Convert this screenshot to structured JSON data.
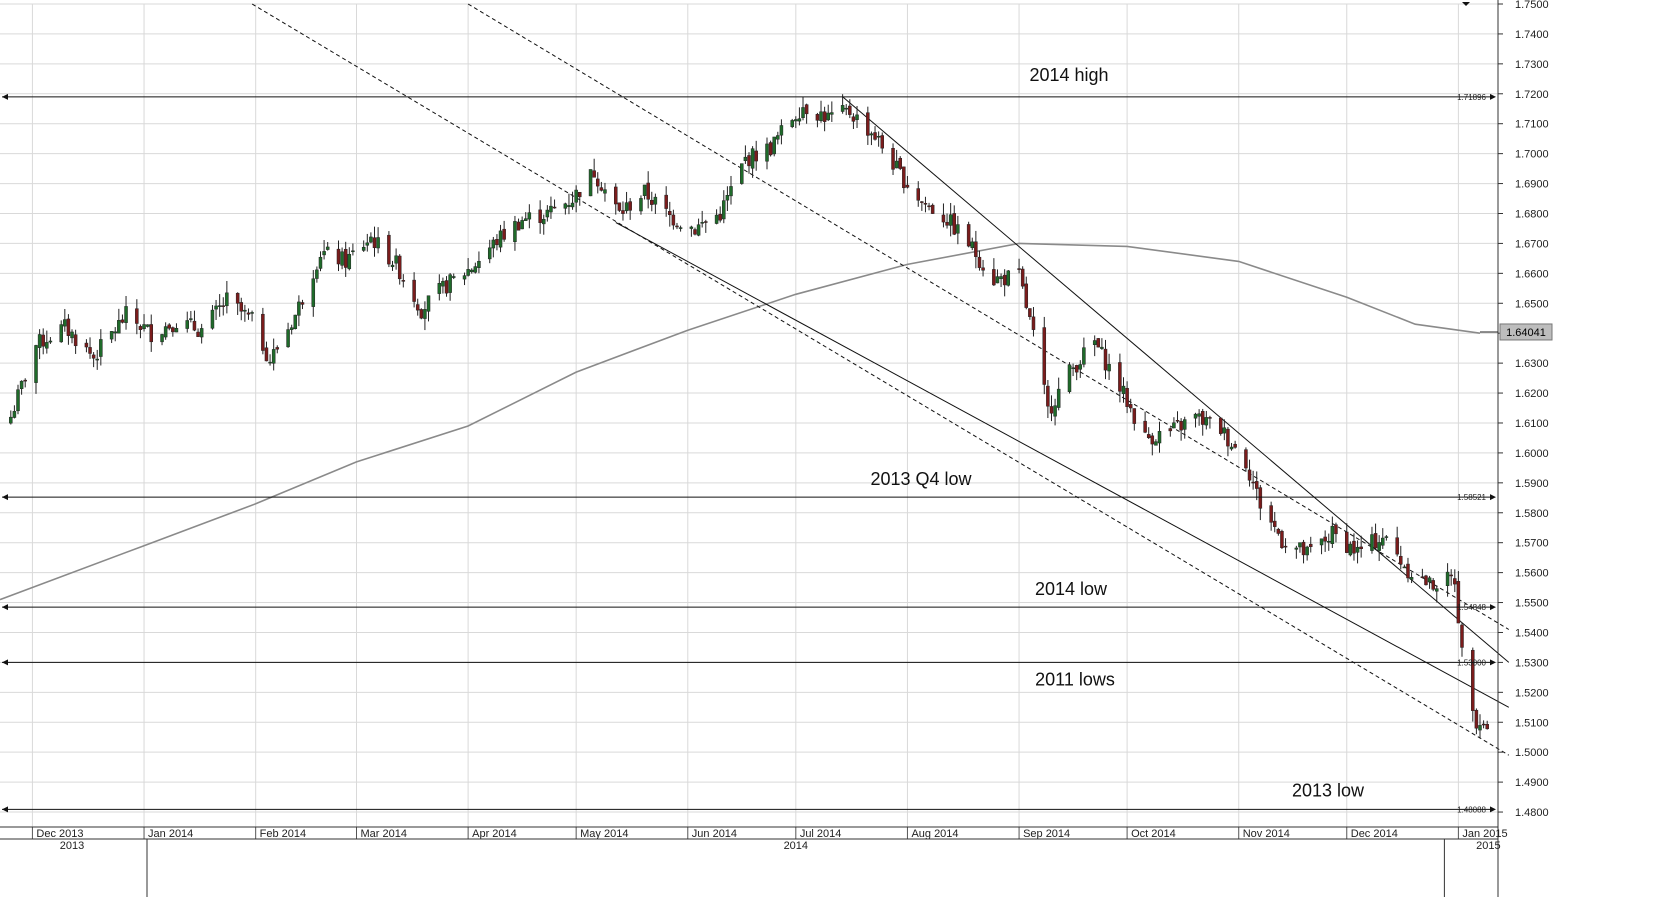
{
  "chart_data": {
    "type": "candlestick",
    "instrument": "",
    "timeframe": "daily",
    "y_axis": {
      "min": 1.475,
      "max": 1.75,
      "ticks": [
        "1.4800",
        "1.4900",
        "1.5000",
        "1.5100",
        "1.5200",
        "1.5300",
        "1.5400",
        "1.5500",
        "1.5600",
        "1.5700",
        "1.5800",
        "1.5900",
        "1.6000",
        "1.6100",
        "1.6200",
        "1.6300",
        "1.6400",
        "1.6500",
        "1.6600",
        "1.6700",
        "1.6800",
        "1.6900",
        "1.7000",
        "1.7100",
        "1.7200",
        "1.7300",
        "1.7400",
        "1.7500"
      ]
    },
    "x_axis": {
      "start": "2013-11-22",
      "end": "2015-01-12",
      "months": [
        {
          "label": "Dec 2013",
          "date": "2013-12-01"
        },
        {
          "label": "Jan 2014",
          "date": "2014-01-01"
        },
        {
          "label": "Feb 2014",
          "date": "2014-02-01"
        },
        {
          "label": "Mar 2014",
          "date": "2014-03-01"
        },
        {
          "label": "Apr 2014",
          "date": "2014-04-01"
        },
        {
          "label": "May 2014",
          "date": "2014-05-01"
        },
        {
          "label": "Jun 2014",
          "date": "2014-06-01"
        },
        {
          "label": "Jul 2014",
          "date": "2014-07-01"
        },
        {
          "label": "Aug 2014",
          "date": "2014-08-01"
        },
        {
          "label": "Sep 2014",
          "date": "2014-09-01"
        },
        {
          "label": "Oct 2014",
          "date": "2014-10-01"
        },
        {
          "label": "Nov 2014",
          "date": "2014-11-01"
        },
        {
          "label": "Dec 2014",
          "date": "2014-12-01"
        },
        {
          "label": "Jan 2015",
          "date": "2015-01-01"
        }
      ],
      "years": [
        {
          "label": "2013",
          "date": "2013-11-22"
        },
        {
          "label": "2014",
          "date": "2014-07-01"
        },
        {
          "label": "2015",
          "date": "2015-01-01"
        }
      ]
    },
    "close_path": [
      [
        "2013-11-25",
        1.612
      ],
      [
        "2013-12-02",
        1.636
      ],
      [
        "2013-12-10",
        1.642
      ],
      [
        "2013-12-18",
        1.632
      ],
      [
        "2013-12-27",
        1.646
      ],
      [
        "2014-01-03",
        1.64
      ],
      [
        "2014-01-10",
        1.644
      ],
      [
        "2014-01-17",
        1.641
      ],
      [
        "2014-01-24",
        1.651
      ],
      [
        "2014-01-31",
        1.644
      ],
      [
        "2014-02-05",
        1.631
      ],
      [
        "2014-02-12",
        1.646
      ],
      [
        "2014-02-19",
        1.667
      ],
      [
        "2014-02-26",
        1.664
      ],
      [
        "2014-03-05",
        1.672
      ],
      [
        "2014-03-12",
        1.663
      ],
      [
        "2014-03-19",
        1.648
      ],
      [
        "2014-03-26",
        1.656
      ],
      [
        "2014-04-02",
        1.662
      ],
      [
        "2014-04-09",
        1.671
      ],
      [
        "2014-04-16",
        1.678
      ],
      [
        "2014-04-23",
        1.68
      ],
      [
        "2014-04-30",
        1.685
      ],
      [
        "2014-05-06",
        1.694
      ],
      [
        "2014-05-13",
        1.68
      ],
      [
        "2014-05-20",
        1.687
      ],
      [
        "2014-05-27",
        1.679
      ],
      [
        "2014-06-03",
        1.675
      ],
      [
        "2014-06-10",
        1.68
      ],
      [
        "2014-06-17",
        1.698
      ],
      [
        "2014-06-24",
        1.702
      ],
      [
        "2014-06-30",
        1.712
      ],
      [
        "2014-07-03",
        1.716
      ],
      [
        "2014-07-10",
        1.712
      ],
      [
        "2014-07-16",
        1.714
      ],
      [
        "2014-07-23",
        1.706
      ],
      [
        "2014-07-30",
        1.693
      ],
      [
        "2014-08-05",
        1.684
      ],
      [
        "2014-08-12",
        1.678
      ],
      [
        "2014-08-18",
        1.67
      ],
      [
        "2014-08-25",
        1.658
      ],
      [
        "2014-09-01",
        1.659
      ],
      [
        "2014-09-05",
        1.639
      ],
      [
        "2014-09-09",
        1.614
      ],
      [
        "2014-09-15",
        1.627
      ],
      [
        "2014-09-22",
        1.637
      ],
      [
        "2014-09-29",
        1.622
      ],
      [
        "2014-10-06",
        1.605
      ],
      [
        "2014-10-13",
        1.607
      ],
      [
        "2014-10-20",
        1.612
      ],
      [
        "2014-10-27",
        1.608
      ],
      [
        "2014-11-03",
        1.597
      ],
      [
        "2014-11-07",
        1.583
      ],
      [
        "2014-11-13",
        1.571
      ],
      [
        "2014-11-20",
        1.566
      ],
      [
        "2014-11-27",
        1.573
      ],
      [
        "2014-12-04",
        1.567
      ],
      [
        "2014-12-11",
        1.572
      ],
      [
        "2014-12-18",
        1.561
      ],
      [
        "2014-12-24",
        1.556
      ],
      [
        "2014-12-31",
        1.558
      ],
      [
        "2015-01-02",
        1.533
      ],
      [
        "2015-01-06",
        1.511
      ],
      [
        "2015-01-09",
        1.509
      ]
    ],
    "overlays": [
      {
        "kind": "moving_average",
        "color": "#8a8a8a",
        "points": [
          [
            "2013-11-22",
            1.551
          ],
          [
            "2014-01-01",
            1.569
          ],
          [
            "2014-02-01",
            1.583
          ],
          [
            "2014-03-01",
            1.597
          ],
          [
            "2014-04-01",
            1.609
          ],
          [
            "2014-05-01",
            1.627
          ],
          [
            "2014-06-01",
            1.641
          ],
          [
            "2014-07-01",
            1.653
          ],
          [
            "2014-08-01",
            1.663
          ],
          [
            "2014-09-01",
            1.67
          ],
          [
            "2014-10-01",
            1.669
          ],
          [
            "2014-11-01",
            1.664
          ],
          [
            "2014-12-01",
            1.652
          ],
          [
            "2014-12-20",
            1.643
          ],
          [
            "2015-01-07",
            1.64
          ]
        ]
      },
      {
        "kind": "trendline",
        "style": "solid",
        "points": [
          [
            "2014-07-14",
            1.719
          ],
          [
            "2015-01-15",
            1.53
          ]
        ]
      },
      {
        "kind": "trendline",
        "style": "solid",
        "points": [
          [
            "2014-05-12",
            1.677
          ],
          [
            "2015-01-15",
            1.515
          ]
        ]
      },
      {
        "kind": "trendline",
        "style": "dashed",
        "points": [
          [
            "2014-01-31",
            1.75
          ],
          [
            "2015-01-15",
            1.499
          ]
        ]
      },
      {
        "kind": "trendline",
        "style": "dashed",
        "points": [
          [
            "2014-04-01",
            1.75
          ],
          [
            "2015-01-15",
            1.541
          ]
        ]
      }
    ],
    "levels": [
      {
        "value": 1.71896,
        "label": "1.71896",
        "annotation": "2014 high"
      },
      {
        "value": 1.58521,
        "label": "1.58521",
        "annotation": "2013 Q4 low"
      },
      {
        "value": 1.54848,
        "label": "1.54848",
        "annotation": "2014 low"
      },
      {
        "value": 1.53,
        "label": "1.53000",
        "annotation": "2011 lows"
      },
      {
        "value": 1.48088,
        "label": "1.48088",
        "annotation": "2013 low"
      }
    ],
    "current_price": {
      "value": 1.64041,
      "label": "1.64041"
    },
    "colors": {
      "up": "#1f6b2a",
      "down": "#7a1c1c",
      "grid": "#d9d9d9",
      "ma": "#8a8a8a",
      "line": "#111111"
    },
    "grid": true
  }
}
